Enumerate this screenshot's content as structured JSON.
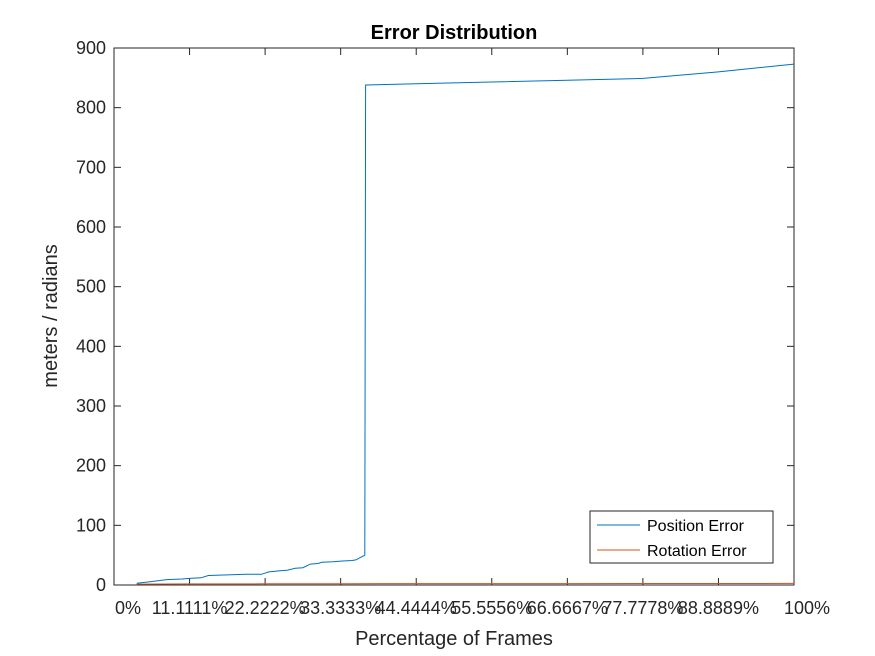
{
  "chart_data": {
    "type": "line",
    "title": "Error Distribution",
    "xlabel": "Percentage of Frames",
    "ylabel": "meters / radians",
    "xlim": [
      0,
      9
    ],
    "ylim": [
      0,
      900
    ],
    "yticks": [
      0,
      100,
      200,
      300,
      400,
      500,
      600,
      700,
      800,
      900
    ],
    "xtick_values": [
      0,
      1,
      2,
      3,
      4,
      5,
      6,
      7,
      8,
      9
    ],
    "xtick_labels": [
      "0%",
      "11.1111%",
      "22.2222%",
      "33.3333%",
      "44.4444%",
      "55.5556%",
      "66.6667%",
      "77.7778%",
      "88.8889%",
      "100%"
    ],
    "grid": false,
    "legend": "bottom-right",
    "series": [
      {
        "name": "Position Error",
        "color": "#0072BD",
        "x": [
          0.3,
          0.45,
          0.7,
          0.9,
          1.0,
          1.15,
          1.25,
          1.5,
          1.75,
          1.95,
          2.05,
          2.2,
          2.3,
          2.4,
          2.5,
          2.6,
          2.7,
          2.75,
          2.9,
          3.0,
          3.15,
          3.2,
          3.32,
          3.33,
          4.0,
          5.0,
          6.0,
          7.0,
          8.0,
          9.0
        ],
        "y": [
          3,
          5,
          9,
          10,
          11,
          12,
          16,
          17,
          18,
          18,
          22,
          24,
          25,
          28,
          29,
          35,
          36,
          38,
          39,
          40,
          41,
          42,
          50,
          838,
          840,
          843,
          846,
          849,
          860,
          873
        ]
      },
      {
        "name": "Rotation Error",
        "color": "#D95319",
        "x": [
          0.3,
          1.0,
          2.0,
          3.0,
          4.0,
          5.0,
          6.0,
          7.0,
          8.0,
          9.0
        ],
        "y": [
          1.5,
          1.8,
          2.0,
          2.2,
          2.3,
          2.4,
          2.4,
          2.5,
          2.5,
          2.6
        ]
      }
    ]
  }
}
